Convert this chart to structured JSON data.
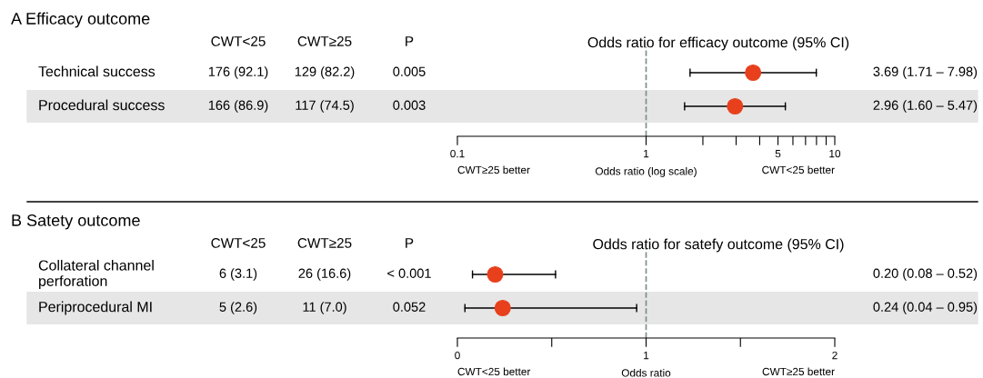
{
  "chart_data": [
    {
      "type": "scatter",
      "orientation": "horizontal",
      "subtitle": "Odds ratio for efficacy outcome (95% CI)",
      "xlabel": "Odds ratio (log scale)",
      "categories": [
        "Technical success",
        "Procedural success"
      ],
      "series": [
        {
          "color": "#e8401c",
          "values": [
            3.69,
            2.96
          ],
          "errors": [
            [
              1.71,
              7.98
            ],
            [
              1.6,
              5.47
            ]
          ],
          "value_labels": [
            "3.69 (1.71 – 7.98)",
            "2.96 (1.60 – 5.47)"
          ]
        }
      ],
      "annotations": [
        "A Efficacy outcome",
        "CWT<25",
        "CWT≥25",
        "P",
        "176 (92.1)",
        "129 (82.2)",
        "0.005",
        "166 (86.9)",
        "117 (74.5)",
        "0.003",
        "CWT≥25 better",
        "CWT<25 better"
      ],
      "log": "x",
      "xlim": [
        0.1,
        10
      ],
      "xticks": [
        0.1,
        1,
        {
          "value": 2,
          "label": null
        },
        {
          "value": 3,
          "label": null
        },
        {
          "value": 4,
          "label": null
        },
        5,
        {
          "value": 6,
          "label": null
        },
        {
          "value": 7,
          "label": null
        },
        {
          "value": 8,
          "label": null
        },
        {
          "value": 9,
          "label": null
        },
        10
      ],
      "ref_lines": [
        {
          "axis": "x",
          "value": 1,
          "color": "#7f8c8d",
          "line_style": "dashed"
        }
      ],
      "marker": "circle",
      "grid": false,
      "legend": false,
      "tick_labels": "x"
    },
    {
      "type": "scatter",
      "orientation": "horizontal",
      "subtitle": "Odds ratio for satefy outcome (95% CI)",
      "xlabel": "Odds ratio",
      "categories": [
        "Collateral channel\nperforation",
        "Periprocedural MI"
      ],
      "series": [
        {
          "color": "#e8401c",
          "values": [
            0.2,
            0.24
          ],
          "errors": [
            [
              0.08,
              0.52
            ],
            [
              0.04,
              0.95
            ]
          ],
          "value_labels": [
            "0.20 (0.08 – 0.52)",
            "0.24 (0.04 – 0.95)"
          ]
        }
      ],
      "annotations": [
        "B Satety outcome",
        "CWT<25",
        "CWT≥25",
        "P",
        "6 (3.1)",
        "26 (16.6)",
        "< 0.001",
        "5 (2.6)",
        "11 (7.0)",
        "0.052",
        "CWT<25 better",
        "CWT≥25 better"
      ],
      "xlim": [
        0,
        2
      ],
      "xticks": [
        0,
        {
          "value": 0.5,
          "label": null
        },
        1,
        {
          "value": 1.5,
          "label": null
        },
        2
      ],
      "ref_lines": [
        {
          "axis": "x",
          "value": 1,
          "color": "#7f8c8d",
          "line_style": "dashed"
        }
      ],
      "marker": "circle",
      "grid": false,
      "legend": false,
      "tick_labels": "x"
    }
  ]
}
